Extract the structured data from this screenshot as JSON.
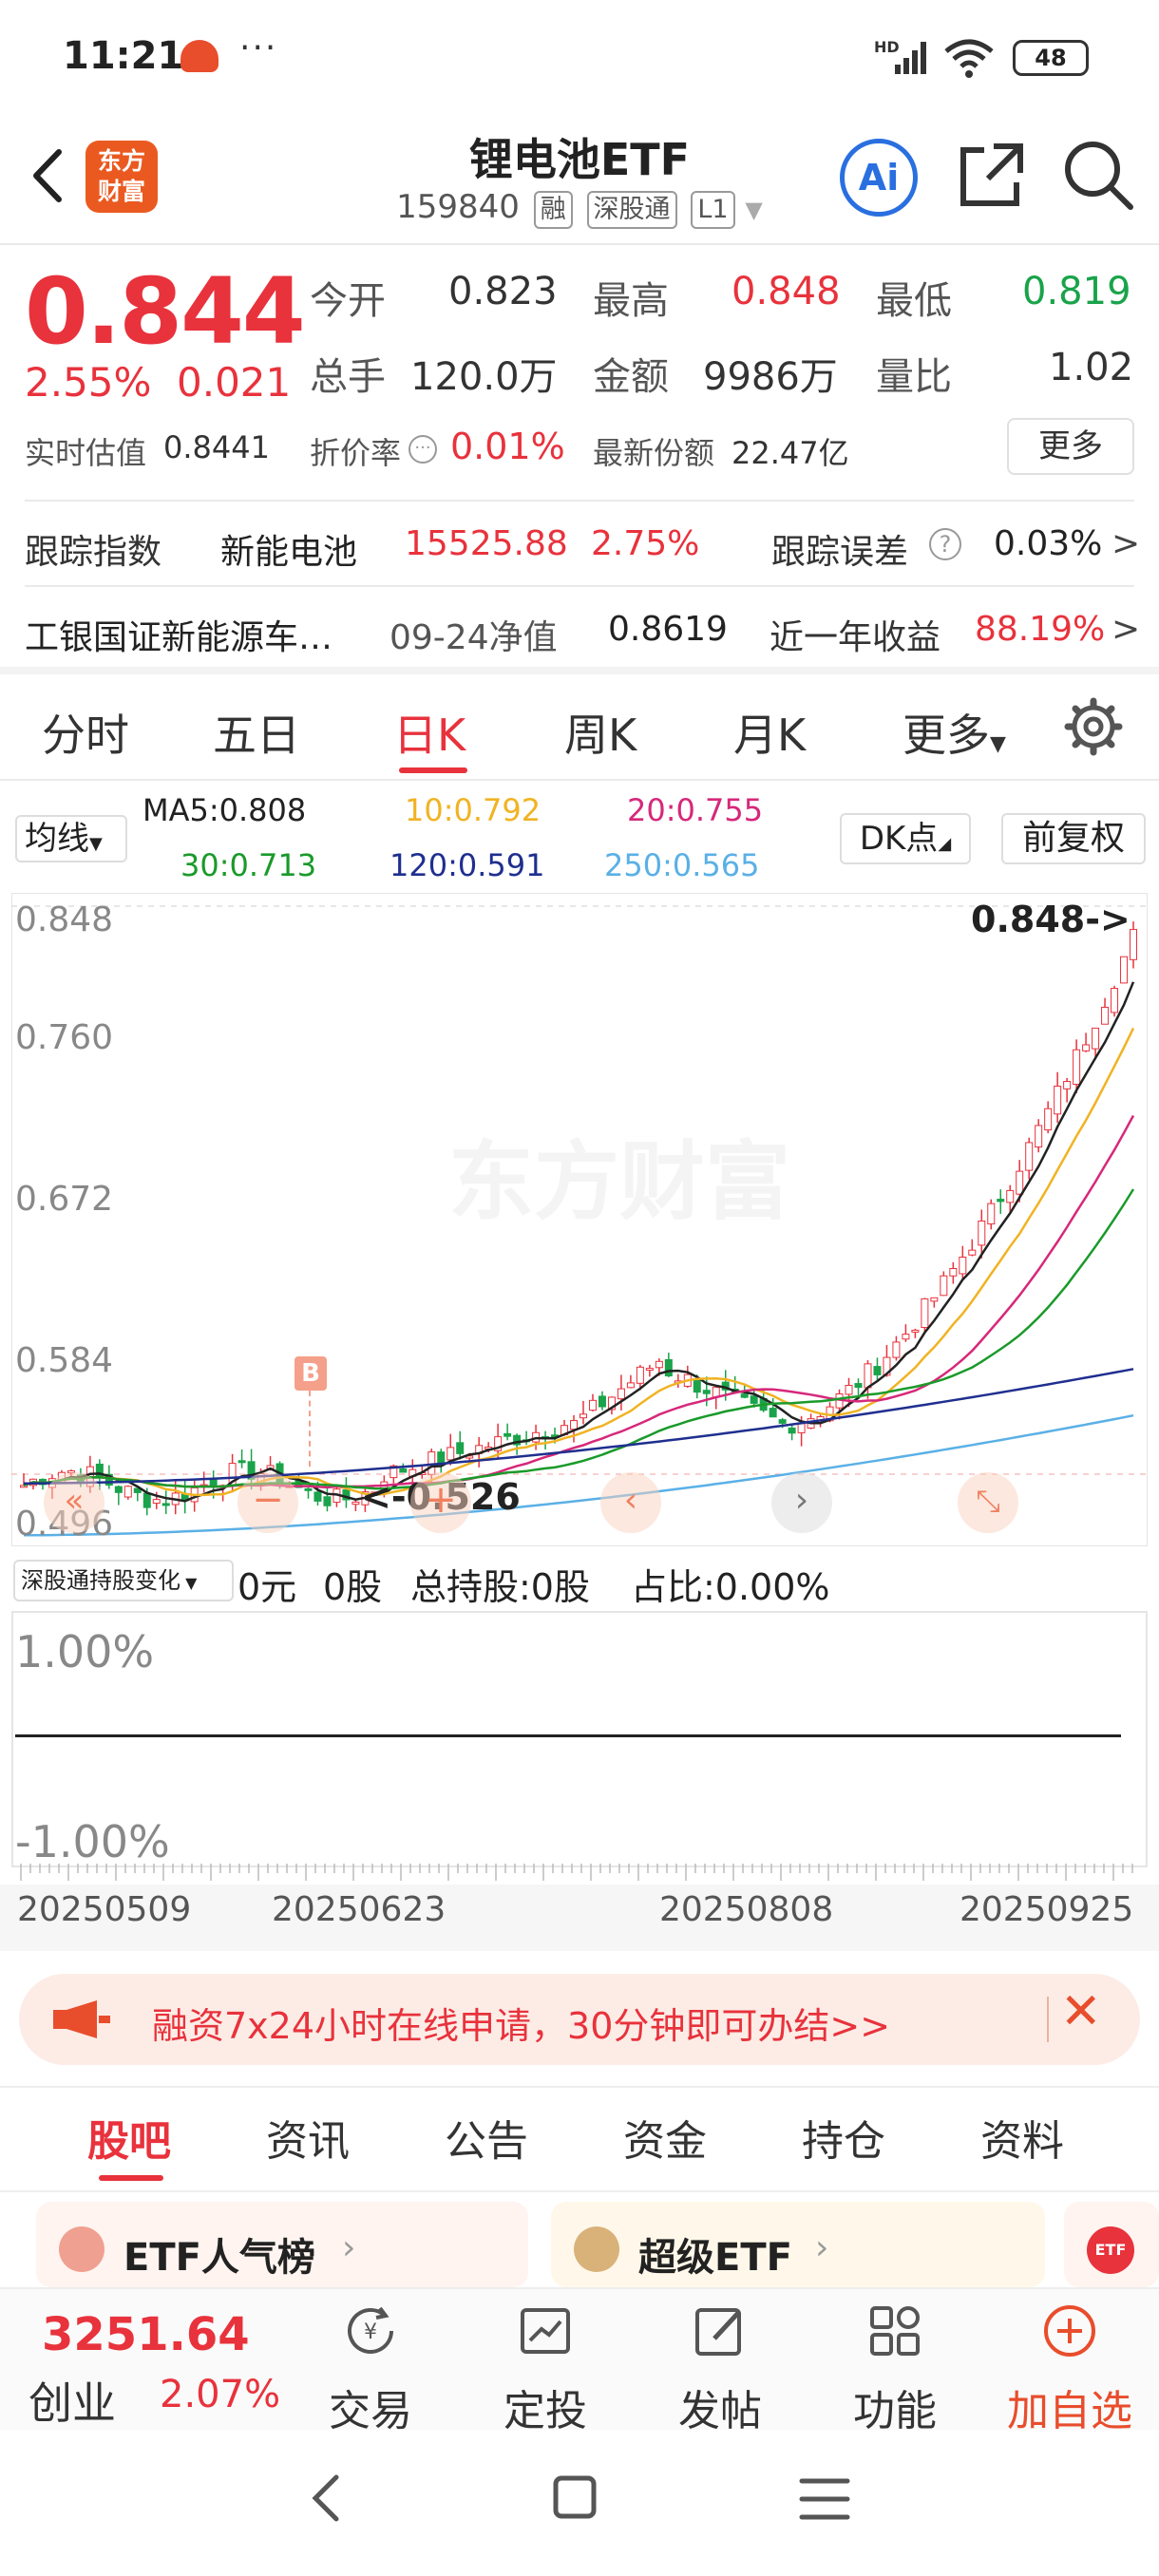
{
  "status_bar": {
    "time": "11:21",
    "dots": "···",
    "network": "HD",
    "battery": "48"
  },
  "header": {
    "logo": [
      "东方",
      "财富"
    ],
    "title": "锂电池ETF",
    "code": "159840",
    "tags": [
      "融",
      "深股通",
      "L1"
    ],
    "ai_label": "Ai"
  },
  "quote": {
    "price": "0.844",
    "change_pct": "2.55%",
    "change_abs": "0.021",
    "open_label": "今开",
    "open": "0.823",
    "high_label": "最高",
    "high": "0.848",
    "low_label": "最低",
    "low": "0.819",
    "volume_label": "总手",
    "volume": "120.0万",
    "amount_label": "金额",
    "amount": "9986万",
    "ratio_label": "量比",
    "ratio": "1.02",
    "iopv_label": "实时估值",
    "iopv": "0.8441",
    "premium_label": "折价率",
    "premium": "0.01%",
    "shares_label": "最新份额",
    "shares": "22.47亿",
    "more": "更多"
  },
  "tracking": {
    "index_label": "跟踪指数",
    "index_name": "新能电池",
    "index_value": "15525.88",
    "index_change": "2.75%",
    "error_label": "跟踪误差",
    "error_value": "0.03%",
    "fund_name": "工银国证新能源车…",
    "nav_label": "09-24净值",
    "nav": "0.8619",
    "return_label": "近一年收益",
    "return_value": "88.19%"
  },
  "tabs": [
    "分时",
    "五日",
    "日K",
    "周K",
    "月K",
    "更多"
  ],
  "ma_legend": {
    "selector": "均线",
    "ma5": "MA5:0.808",
    "ma10": "10:0.792",
    "ma20": "20:0.755",
    "ma30": "30:0.713",
    "ma120": "120:0.591",
    "ma250": "250:0.565",
    "dk": "DK点",
    "adjust": "前复权",
    "colors": {
      "ma5": "#222222",
      "ma10": "#f0b323",
      "ma20": "#d6287a",
      "ma30": "#1a9a2a",
      "ma120": "#1f2f8f",
      "ma250": "#5ab0e6"
    }
  },
  "chart": {
    "y_labels": [
      "0.848",
      "0.760",
      "0.672",
      "0.584",
      "0.496"
    ],
    "high_marker": "0.848->",
    "low_marker": "<-0.526",
    "buy_marker": "B",
    "watermark": "东方财富",
    "x_labels": [
      "20250509",
      "20250623",
      "20250808",
      "20250925"
    ]
  },
  "holding": {
    "selector": "深股通持股变化",
    "amount": "0元",
    "shares": "0股",
    "total": "总持股:0股",
    "ratio": "占比:0.00%",
    "y_top": "1.00%",
    "y_bottom": "-1.00%"
  },
  "banner": {
    "text": "融资7x24小时在线申请，30分钟即可办结>>"
  },
  "bottom_tabs": [
    "股吧",
    "资讯",
    "公告",
    "资金",
    "持仓",
    "资料"
  ],
  "cards": [
    "ETF人气榜",
    "超级ETF"
  ],
  "bottom_bar": {
    "index_value": "3251.64",
    "index_name": "创业",
    "index_change": "2.07%",
    "items": [
      "交易",
      "定投",
      "发帖",
      "功能",
      "加自选"
    ]
  }
}
